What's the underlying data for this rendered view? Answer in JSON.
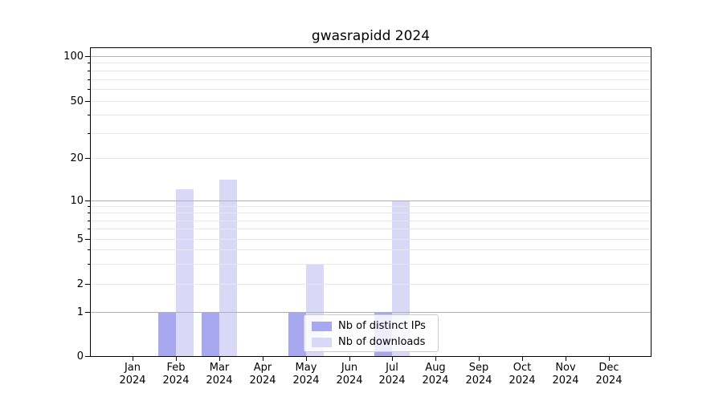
{
  "chart_data": {
    "type": "bar",
    "title": "gwasrapidd 2024",
    "xlabel": "",
    "ylabel": "",
    "categories": [
      {
        "month": "Jan",
        "year": "2024"
      },
      {
        "month": "Feb",
        "year": "2024"
      },
      {
        "month": "Mar",
        "year": "2024"
      },
      {
        "month": "Apr",
        "year": "2024"
      },
      {
        "month": "May",
        "year": "2024"
      },
      {
        "month": "Jun",
        "year": "2024"
      },
      {
        "month": "Jul",
        "year": "2024"
      },
      {
        "month": "Aug",
        "year": "2024"
      },
      {
        "month": "Sep",
        "year": "2024"
      },
      {
        "month": "Oct",
        "year": "2024"
      },
      {
        "month": "Nov",
        "year": "2024"
      },
      {
        "month": "Dec",
        "year": "2024"
      }
    ],
    "series": [
      {
        "name": "Nb of distinct IPs",
        "color": "#a8a8f1",
        "values": [
          0,
          1,
          1,
          0,
          1,
          0,
          1,
          0,
          0,
          0,
          0,
          0
        ]
      },
      {
        "name": "Nb of downloads",
        "color": "#d9d9f7",
        "values": [
          0,
          12,
          14,
          0,
          3,
          0,
          10,
          0,
          0,
          0,
          0,
          0
        ]
      }
    ],
    "yscale": "log-like",
    "ylim": [
      0,
      113
    ],
    "ytick_values": [
      0,
      1,
      2,
      5,
      10,
      20,
      50,
      100
    ],
    "ytick_labels": [
      "0",
      "1",
      "2",
      "5",
      "10",
      "20",
      "50",
      "100"
    ],
    "major_grid_values": [
      1,
      10,
      100
    ],
    "minor_grid_values": [
      3,
      4,
      6,
      7,
      8,
      9,
      30,
      40,
      60,
      70,
      80,
      90
    ],
    "labeled_minor_grid_values": [
      2,
      5,
      20,
      50
    ],
    "grid": "horizontal major+minor, drawn over bars",
    "legend_position": "lower center"
  },
  "colors": {
    "distinct_ips_bar": "#a8a8f1",
    "downloads_bar": "#d9d9f7",
    "grid_major": "#b0b0b0",
    "grid_minor": "#e8e8e8",
    "spine": "#000000",
    "legend_border": "#cccccc",
    "legend_background": "rgba(255,255,255,0.8)"
  }
}
